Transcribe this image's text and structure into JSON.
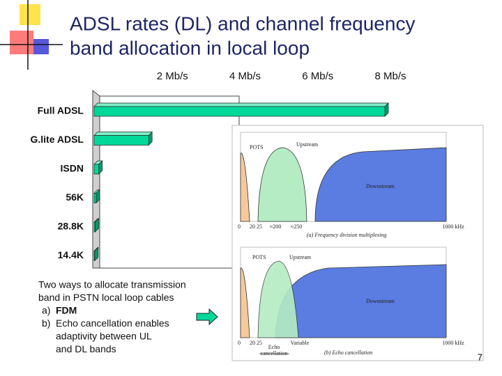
{
  "title": [
    "ADSL rates (DL) and channel frequency",
    "band allocation in local loop"
  ],
  "chart_data": {
    "type": "bar",
    "orientation": "horizontal",
    "categories": [
      "Full ADSL",
      "G.lite ADSL",
      "ISDN",
      "56K",
      "28.8K",
      "14.4K"
    ],
    "values": [
      8,
      1.5,
      0.128,
      0.056,
      0.0288,
      0.0144
    ],
    "color": "#00d89a",
    "xlim": [
      0,
      8
    ],
    "xticks": [
      {
        "value": 2,
        "label": "2 Mb/s"
      },
      {
        "value": 4,
        "label": "4 Mb/s"
      },
      {
        "value": 6,
        "label": "6 Mb/s"
      },
      {
        "value": 8,
        "label": "8 Mb/s"
      }
    ],
    "grid": false
  },
  "notes": {
    "text": [
      "Two ways to allocate transmission",
      "band in PSTN local loop cables"
    ],
    "items": [
      {
        "label": "a)",
        "text": [
          "FDM"
        ]
      },
      {
        "label": "b)",
        "text": [
          "Echo cancellation enables",
          "adaptivity between UL",
          "and DL bands"
        ]
      }
    ]
  },
  "figure": {
    "panels": [
      {
        "bands": [
          "POTS",
          "Upstream",
          "Downstream"
        ],
        "axis": [
          "0",
          "20",
          "25",
          "≈200",
          "≈250",
          "1000 kHz"
        ],
        "caption": "(a) Frequency division multiplexing"
      },
      {
        "bands": [
          "POTS",
          "Upstream",
          "Downstream"
        ],
        "axis": [
          "0",
          "20",
          "25",
          "Variable",
          "1000 kHz"
        ],
        "caption": "(b) Echo cancellation",
        "note": [
          "Echo",
          "cancellation"
        ]
      }
    ]
  },
  "page_number": "7"
}
